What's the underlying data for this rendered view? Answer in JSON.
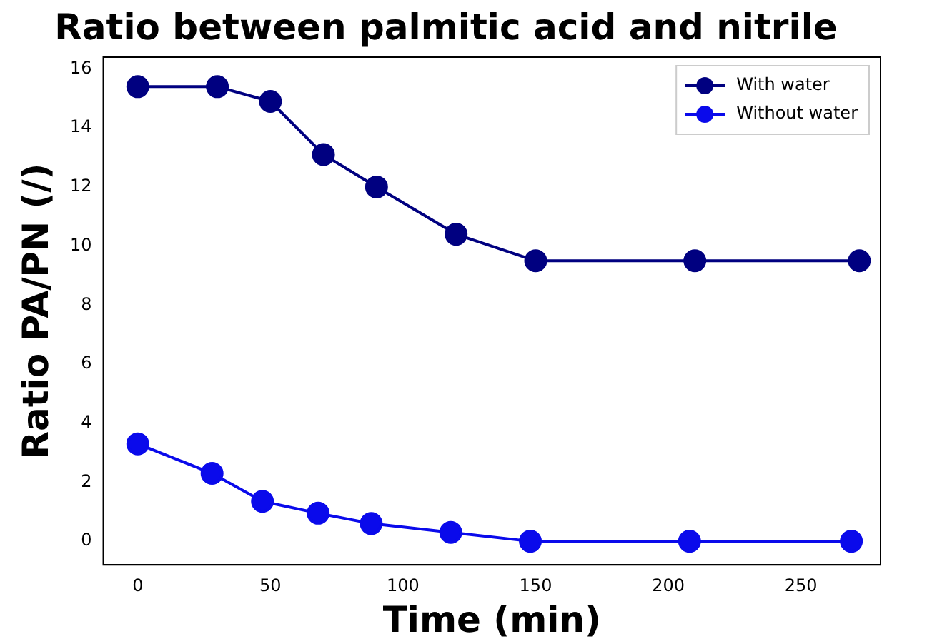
{
  "chart_data": {
    "type": "line",
    "title": "Ratio between palmitic acid and nitrile",
    "xlabel": "Time (min)",
    "ylabel": "Ratio PA/PN (/)",
    "series": [
      {
        "name": "With water",
        "color": "#000080",
        "x": [
          0,
          30,
          50,
          70,
          90,
          120,
          150,
          210,
          272
        ],
        "values": [
          15.4,
          15.4,
          14.9,
          13.1,
          12.0,
          10.4,
          9.5,
          9.5,
          9.5
        ]
      },
      {
        "name": "Without water",
        "color": "#0a0aeb",
        "x": [
          0,
          28,
          47,
          68,
          88,
          118,
          148,
          208,
          269
        ],
        "values": [
          3.3,
          2.3,
          1.35,
          0.95,
          0.6,
          0.3,
          0.0,
          0.0,
          0.0
        ]
      }
    ],
    "xlim": [
      -13,
      280
    ],
    "xticks": [
      0,
      50,
      100,
      150,
      200,
      250
    ],
    "ylim": [
      -0.8,
      16.4
    ],
    "yticks": [
      0,
      2,
      4,
      6,
      8,
      10,
      12,
      14,
      16
    ],
    "grid": false,
    "legend": "top right",
    "marker": "circle",
    "line_style": "solid"
  }
}
